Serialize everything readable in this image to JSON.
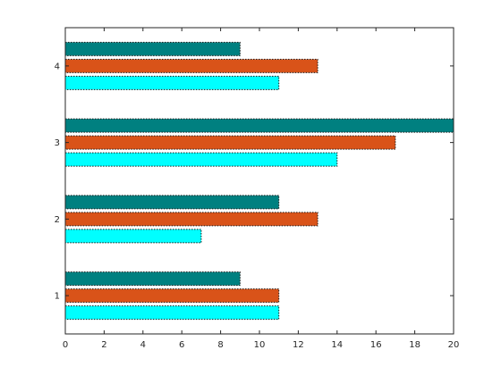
{
  "chart_data": {
    "type": "bar",
    "orientation": "horizontal",
    "categories": [
      "1",
      "2",
      "3",
      "4"
    ],
    "series": [
      {
        "color": "#00FFFF",
        "values": [
          11,
          7,
          14,
          11
        ]
      },
      {
        "color": "#D95319",
        "values": [
          11,
          13,
          17,
          13
        ]
      },
      {
        "color": "#008080",
        "values": [
          9,
          11,
          20,
          9
        ]
      }
    ],
    "title": "",
    "xlabel": "",
    "ylabel": "",
    "xlim": [
      0,
      20
    ],
    "xticks": [
      "0",
      "2",
      "4",
      "6",
      "8",
      "10",
      "12",
      "14",
      "16",
      "18",
      "20"
    ],
    "grid": false,
    "legend": false
  }
}
